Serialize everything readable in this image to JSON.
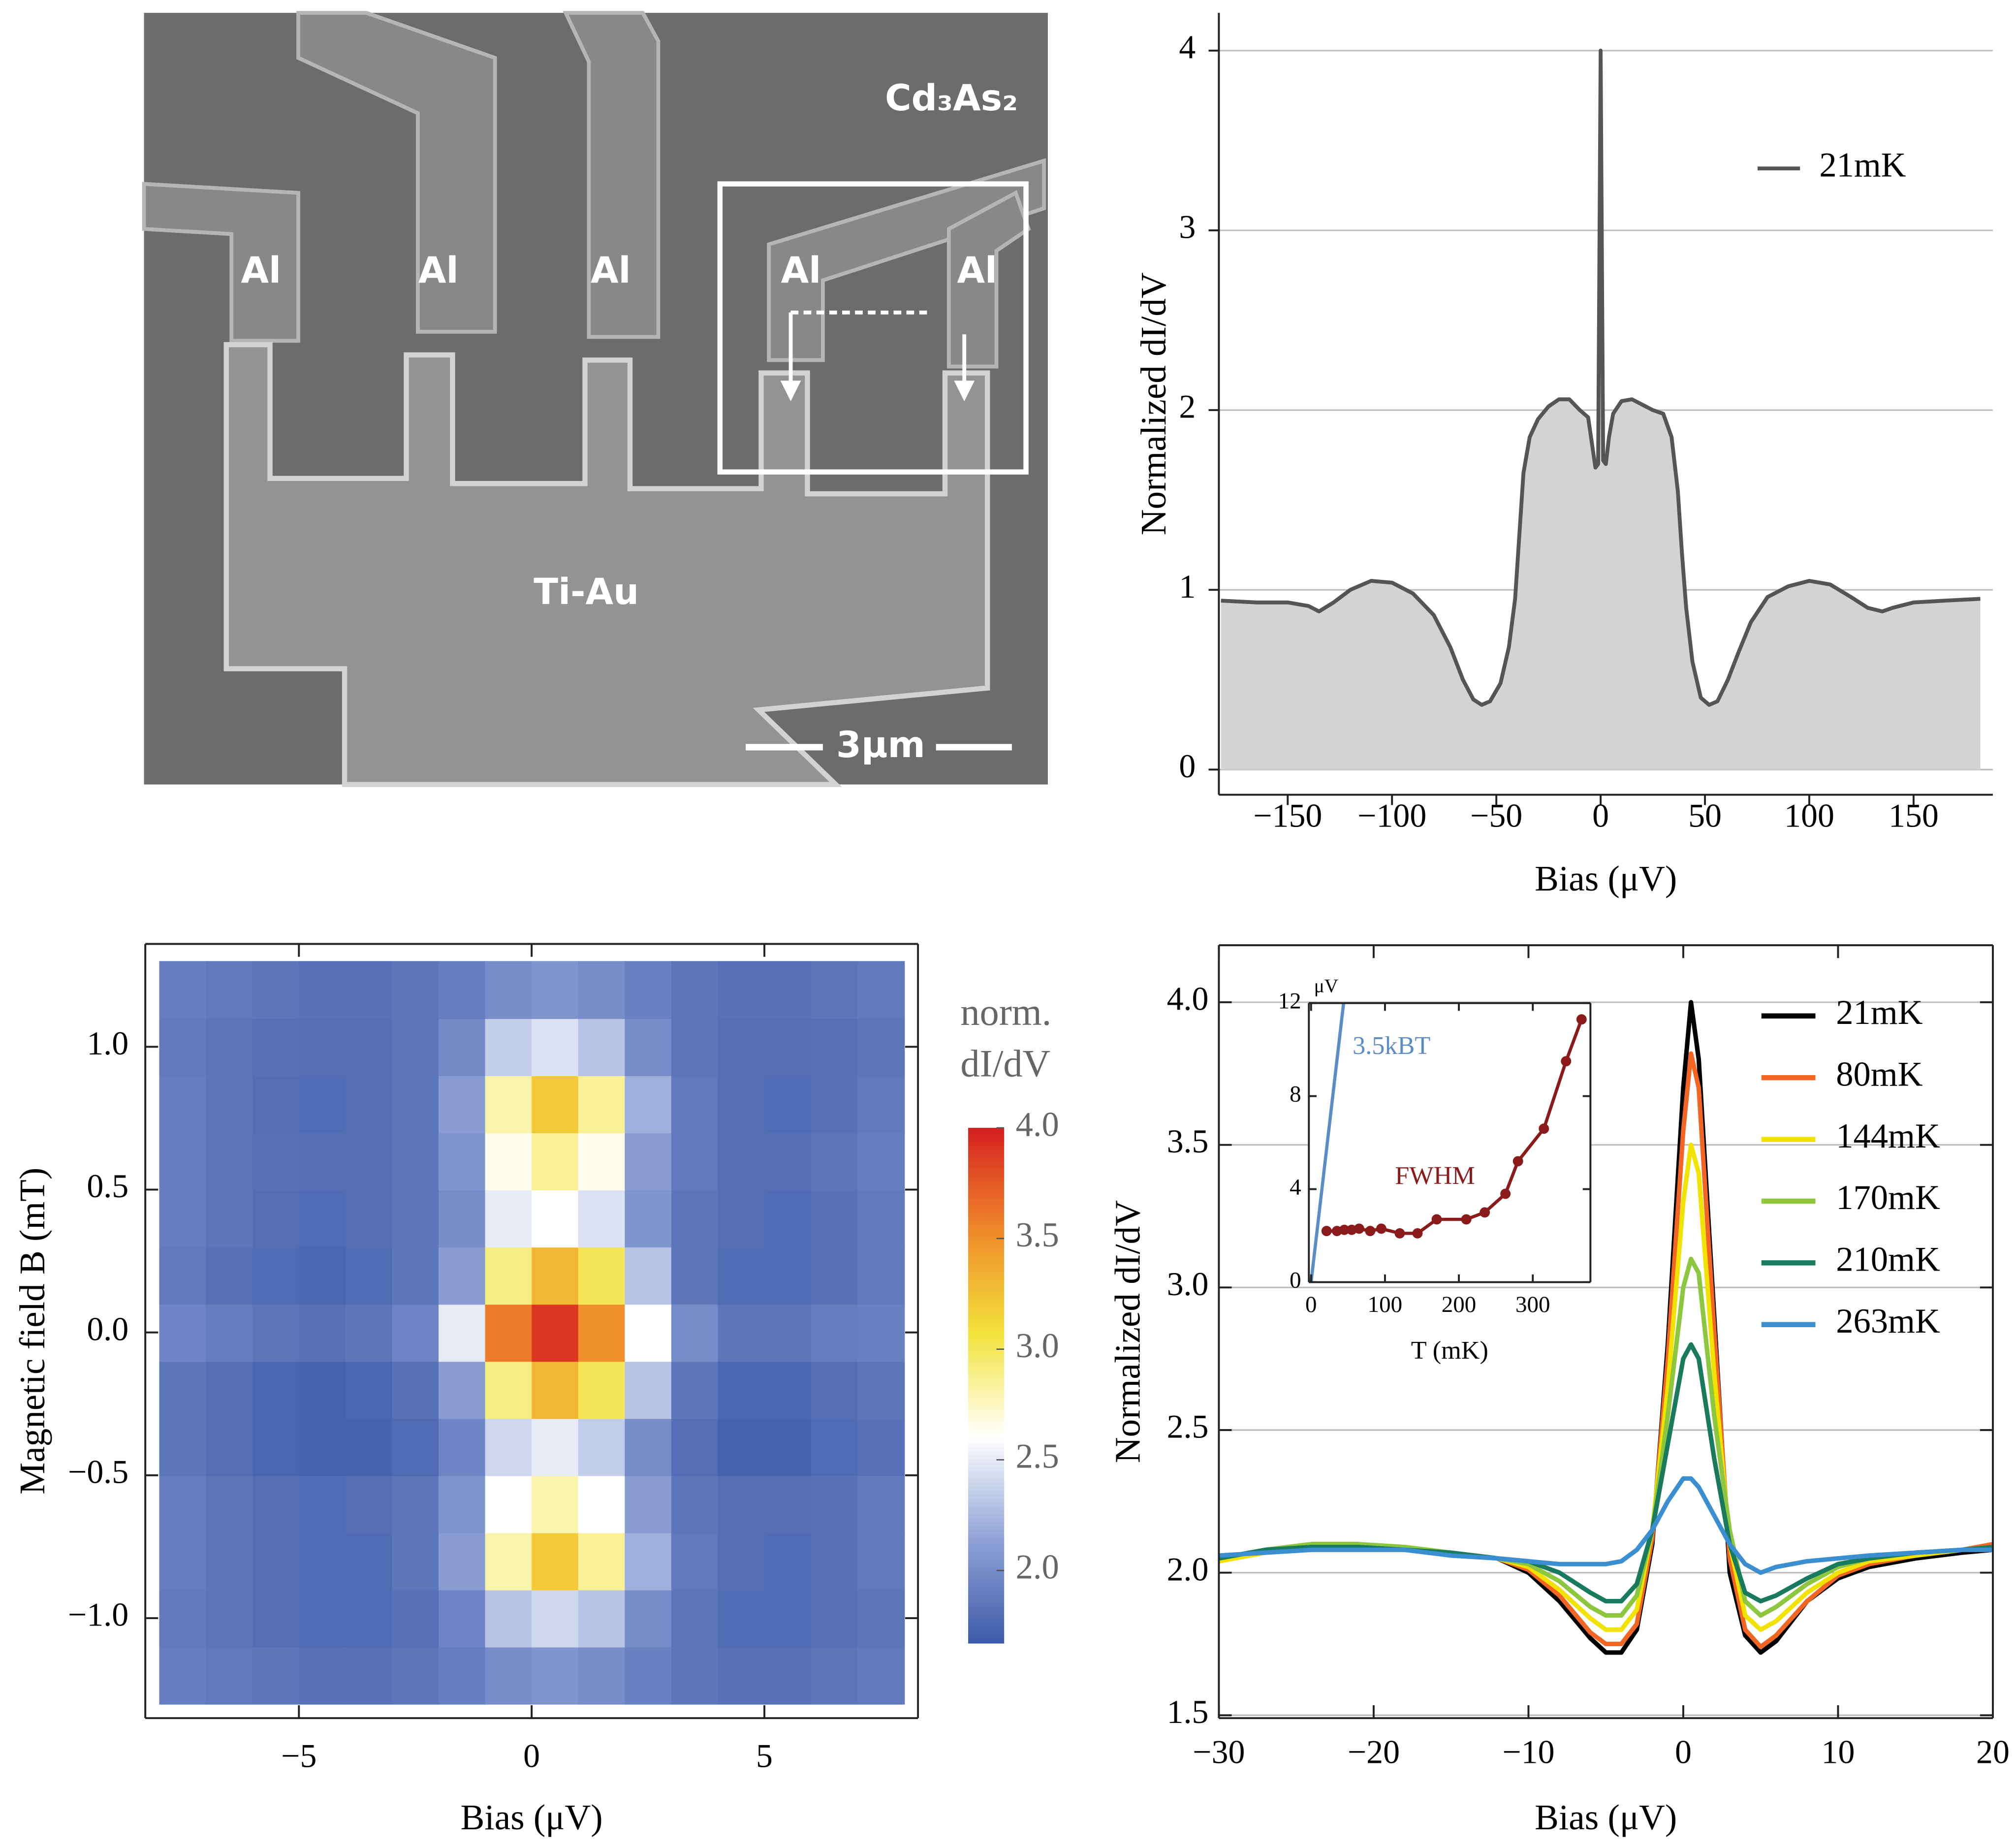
{
  "sem_image": {
    "material_label": "Cd₃As₂",
    "lead_labels": [
      "Al",
      "Al",
      "Al",
      "Al",
      "Al"
    ],
    "pad_label": "Ti-Au",
    "scale_bar_label": "3μm"
  },
  "chart_data": [
    {
      "type": "area",
      "xlabel": "Bias (μV)",
      "ylabel": "Normalized dI/dV",
      "x": [
        -182,
        -165,
        -150,
        -140,
        -135,
        -128,
        -120,
        -110,
        -100,
        -90,
        -80,
        -72,
        -66,
        -61,
        -57,
        -53,
        -48,
        -44,
        -41,
        -39,
        -37,
        -34,
        -30,
        -25,
        -20,
        -15,
        -10,
        -6,
        -4,
        -2.5,
        -1.2,
        0,
        1.2,
        2.5,
        4,
        6,
        10,
        15,
        20,
        25,
        30,
        34,
        37,
        39,
        41,
        44,
        48,
        52,
        56,
        61,
        66,
        72,
        80,
        90,
        100,
        110,
        120,
        128,
        135,
        140,
        150,
        165,
        182
      ],
      "series": [
        {
          "name": "21mK",
          "color": "#555555",
          "values": [
            0.94,
            0.93,
            0.93,
            0.91,
            0.88,
            0.93,
            1.0,
            1.05,
            1.04,
            0.98,
            0.86,
            0.68,
            0.5,
            0.39,
            0.36,
            0.38,
            0.48,
            0.68,
            0.95,
            1.3,
            1.65,
            1.85,
            1.95,
            2.02,
            2.06,
            2.06,
            2.0,
            1.96,
            1.8,
            1.68,
            1.7,
            4.0,
            1.72,
            1.7,
            1.85,
            1.98,
            2.05,
            2.06,
            2.03,
            2.0,
            1.98,
            1.85,
            1.55,
            1.2,
            0.9,
            0.6,
            0.4,
            0.36,
            0.38,
            0.5,
            0.65,
            0.82,
            0.96,
            1.02,
            1.05,
            1.03,
            0.96,
            0.9,
            0.88,
            0.9,
            0.93,
            0.94,
            0.95
          ]
        }
      ],
      "fill": "#d3d3d3",
      "xlim": [
        -183,
        188
      ],
      "ylim": [
        -0.14,
        4.21
      ],
      "xticks": [
        {
          "value": -150,
          "label": "−150"
        },
        {
          "value": -100,
          "label": "−100"
        },
        {
          "value": -50,
          "label": "−50"
        },
        0,
        50,
        100,
        150
      ],
      "yticks": [
        0,
        1,
        2,
        3,
        4
      ],
      "grid": true,
      "legend": "upper right"
    },
    {
      "type": "heatmap",
      "xlabel": "Bias (μV)",
      "ylabel": "Magnetic field B (mT)",
      "x": [
        -7.5,
        -6.5,
        -5.5,
        -4.5,
        -3.5,
        -2.5,
        -1.5,
        -0.5,
        0.5,
        1.5,
        2.5,
        3.5,
        4.5,
        5.5,
        6.5,
        7.5
      ],
      "y": [
        -1.2,
        -1.0,
        -0.8,
        -0.6,
        -0.4,
        -0.2,
        0.0,
        0.2,
        0.4,
        0.6,
        0.8,
        1.0,
        1.2
      ],
      "z": [
        [
          1.9,
          1.88,
          1.85,
          1.82,
          1.82,
          1.85,
          1.9,
          2.0,
          2.05,
          2.0,
          1.92,
          1.85,
          1.82,
          1.82,
          1.85,
          1.88
        ],
        [
          1.88,
          1.85,
          1.8,
          1.78,
          1.78,
          1.82,
          1.95,
          2.3,
          2.4,
          2.3,
          2.0,
          1.85,
          1.78,
          1.78,
          1.82,
          1.85
        ],
        [
          1.9,
          1.85,
          1.8,
          1.78,
          1.78,
          1.85,
          2.1,
          2.8,
          3.2,
          2.85,
          2.2,
          1.88,
          1.8,
          1.78,
          1.82,
          1.88
        ],
        [
          1.9,
          1.85,
          1.8,
          1.78,
          1.8,
          1.85,
          2.05,
          2.6,
          2.8,
          2.6,
          2.1,
          1.85,
          1.8,
          1.8,
          1.82,
          1.88
        ],
        [
          1.85,
          1.8,
          1.75,
          1.72,
          1.72,
          1.78,
          1.95,
          2.4,
          2.5,
          2.35,
          2.0,
          1.8,
          1.72,
          1.72,
          1.78,
          1.82
        ],
        [
          1.85,
          1.8,
          1.75,
          1.72,
          1.75,
          1.82,
          2.1,
          2.9,
          3.3,
          3.0,
          2.3,
          1.85,
          1.75,
          1.75,
          1.8,
          1.85
        ],
        [
          1.95,
          1.9,
          1.85,
          1.82,
          1.85,
          1.95,
          2.5,
          3.6,
          3.9,
          3.5,
          2.6,
          2.0,
          1.85,
          1.85,
          1.9,
          1.92
        ],
        [
          1.88,
          1.82,
          1.78,
          1.75,
          1.78,
          1.85,
          2.1,
          2.9,
          3.3,
          3.0,
          2.3,
          1.85,
          1.78,
          1.78,
          1.82,
          1.88
        ],
        [
          1.9,
          1.85,
          1.8,
          1.78,
          1.8,
          1.85,
          2.0,
          2.5,
          2.6,
          2.45,
          2.05,
          1.85,
          1.8,
          1.78,
          1.82,
          1.88
        ],
        [
          1.9,
          1.85,
          1.82,
          1.8,
          1.8,
          1.85,
          2.05,
          2.65,
          2.85,
          2.65,
          2.1,
          1.88,
          1.8,
          1.8,
          1.85,
          1.9
        ],
        [
          1.9,
          1.85,
          1.8,
          1.78,
          1.8,
          1.85,
          2.1,
          2.8,
          3.2,
          2.85,
          2.2,
          1.88,
          1.8,
          1.78,
          1.82,
          1.88
        ],
        [
          1.88,
          1.85,
          1.82,
          1.8,
          1.8,
          1.85,
          1.98,
          2.35,
          2.45,
          2.3,
          2.0,
          1.85,
          1.8,
          1.8,
          1.82,
          1.85
        ],
        [
          1.9,
          1.88,
          1.85,
          1.82,
          1.82,
          1.85,
          1.9,
          2.0,
          2.05,
          2.0,
          1.92,
          1.85,
          1.82,
          1.82,
          1.85,
          1.88
        ]
      ],
      "xlim": [
        -8.3,
        8.3
      ],
      "ylim": [
        -1.35,
        1.36
      ],
      "xticks": [
        {
          "value": -5,
          "label": "−5"
        },
        0,
        5
      ],
      "yticks": [
        {
          "value": -1,
          "label": "−1.0"
        },
        {
          "value": -0.5,
          "label": "−0.5"
        },
        {
          "value": 0,
          "label": "0.0"
        },
        0.5,
        {
          "value": 1,
          "label": "1.0"
        }
      ],
      "zlim": [
        1.67,
        4.0
      ],
      "zticks": [
        {
          "value": 2,
          "label": "2.0"
        },
        2.5,
        {
          "value": 3,
          "label": "3.0"
        },
        3.5,
        {
          "value": 4,
          "label": "4.0"
        }
      ],
      "colorbar_label": [
        "norm.",
        "dI/dV"
      ],
      "colorscale": [
        "#3c5aa8",
        "#8ea2d6",
        "#ffffff",
        "#f3e33c",
        "#ef8a2a",
        "#d51f1f"
      ]
    },
    {
      "type": "line",
      "xlabel": "Bias (μV)",
      "ylabel": "Normalized dI/dV",
      "x": [
        -30,
        -27,
        -24,
        -21,
        -18,
        -15,
        -12,
        -10,
        -8,
        -6,
        -5,
        -4,
        -3,
        -2,
        -1,
        0,
        0.5,
        1,
        2,
        3,
        4,
        5,
        6,
        8,
        10,
        12,
        15,
        18,
        20
      ],
      "series": [
        {
          "name": "21mK",
          "color": "#000000",
          "values": [
            2.05,
            2.08,
            2.1,
            2.1,
            2.08,
            2.07,
            2.05,
            2.0,
            1.9,
            1.77,
            1.72,
            1.72,
            1.8,
            2.1,
            2.8,
            3.7,
            4.0,
            3.8,
            2.9,
            2.0,
            1.78,
            1.72,
            1.76,
            1.9,
            1.98,
            2.02,
            2.05,
            2.07,
            2.08
          ]
        },
        {
          "name": "80mK",
          "color": "#f26522",
          "values": [
            2.04,
            2.08,
            2.1,
            2.09,
            2.08,
            2.07,
            2.05,
            2.01,
            1.92,
            1.79,
            1.75,
            1.75,
            1.82,
            2.12,
            2.75,
            3.55,
            3.82,
            3.7,
            2.85,
            2.05,
            1.8,
            1.74,
            1.78,
            1.9,
            1.99,
            2.03,
            2.06,
            2.08,
            2.1
          ]
        },
        {
          "name": "144mK",
          "color": "#f2e200",
          "values": [
            2.04,
            2.07,
            2.09,
            2.09,
            2.08,
            2.07,
            2.05,
            2.02,
            1.94,
            1.84,
            1.8,
            1.8,
            1.87,
            2.15,
            2.65,
            3.3,
            3.5,
            3.4,
            2.7,
            2.1,
            1.85,
            1.8,
            1.83,
            1.93,
            2.0,
            2.04,
            2.06,
            2.08,
            2.09
          ]
        },
        {
          "name": "170mK",
          "color": "#8dc63f",
          "values": [
            2.05,
            2.08,
            2.1,
            2.1,
            2.09,
            2.07,
            2.05,
            2.03,
            1.97,
            1.88,
            1.85,
            1.85,
            1.92,
            2.15,
            2.55,
            3.0,
            3.1,
            3.05,
            2.55,
            2.15,
            1.9,
            1.85,
            1.88,
            1.96,
            2.02,
            2.05,
            2.07,
            2.08,
            2.09
          ]
        },
        {
          "name": "210mK",
          "color": "#1a7a5e",
          "values": [
            2.05,
            2.08,
            2.09,
            2.09,
            2.08,
            2.07,
            2.05,
            2.04,
            2.0,
            1.93,
            1.9,
            1.9,
            1.96,
            2.15,
            2.45,
            2.75,
            2.8,
            2.75,
            2.4,
            2.1,
            1.93,
            1.9,
            1.92,
            1.98,
            2.03,
            2.05,
            2.07,
            2.08,
            2.09
          ]
        },
        {
          "name": "263mK",
          "color": "#3b8fd0",
          "values": [
            2.06,
            2.07,
            2.08,
            2.08,
            2.08,
            2.06,
            2.05,
            2.04,
            2.03,
            2.03,
            2.03,
            2.04,
            2.08,
            2.15,
            2.25,
            2.33,
            2.33,
            2.3,
            2.2,
            2.1,
            2.03,
            2.0,
            2.02,
            2.04,
            2.05,
            2.06,
            2.07,
            2.08,
            2.08
          ]
        }
      ],
      "xlim": [
        -30,
        20
      ],
      "ylim": [
        1.49,
        4.2
      ],
      "xticks": [
        {
          "value": -30,
          "label": "−30"
        },
        {
          "value": -20,
          "label": "−20"
        },
        {
          "value": -10,
          "label": "−10"
        },
        0,
        10,
        20
      ],
      "yticks": [
        1.5,
        {
          "value": 2,
          "label": "2.0"
        },
        2.5,
        {
          "value": 3,
          "label": "3.0"
        },
        3.5,
        {
          "value": 4,
          "label": "4.0"
        }
      ],
      "grid": true,
      "legend": "upper right"
    },
    {
      "type": "line",
      "xlabel": "T (mK)",
      "ylabel": "μV",
      "series": [
        {
          "name": "3.5kBT",
          "color": "#5b8cc6",
          "x": [
            0,
            44
          ],
          "values": [
            0,
            12
          ]
        },
        {
          "name": "FWHM",
          "color": "#8b1a1a",
          "marker": true,
          "x": [
            21,
            35,
            45,
            55,
            65,
            80,
            95,
            120,
            144,
            170,
            210,
            235,
            263,
            280,
            315,
            345,
            366
          ],
          "values": [
            2.2,
            2.2,
            2.25,
            2.25,
            2.3,
            2.2,
            2.3,
            2.1,
            2.1,
            2.7,
            2.7,
            3.0,
            3.8,
            5.2,
            6.6,
            9.5,
            11.3
          ]
        }
      ],
      "xlim": [
        -3,
        378
      ],
      "ylim": [
        0,
        12
      ],
      "xticks": [
        0,
        100,
        200,
        300
      ],
      "yticks": [
        0,
        4,
        8,
        12
      ],
      "legend": "inline"
    }
  ]
}
